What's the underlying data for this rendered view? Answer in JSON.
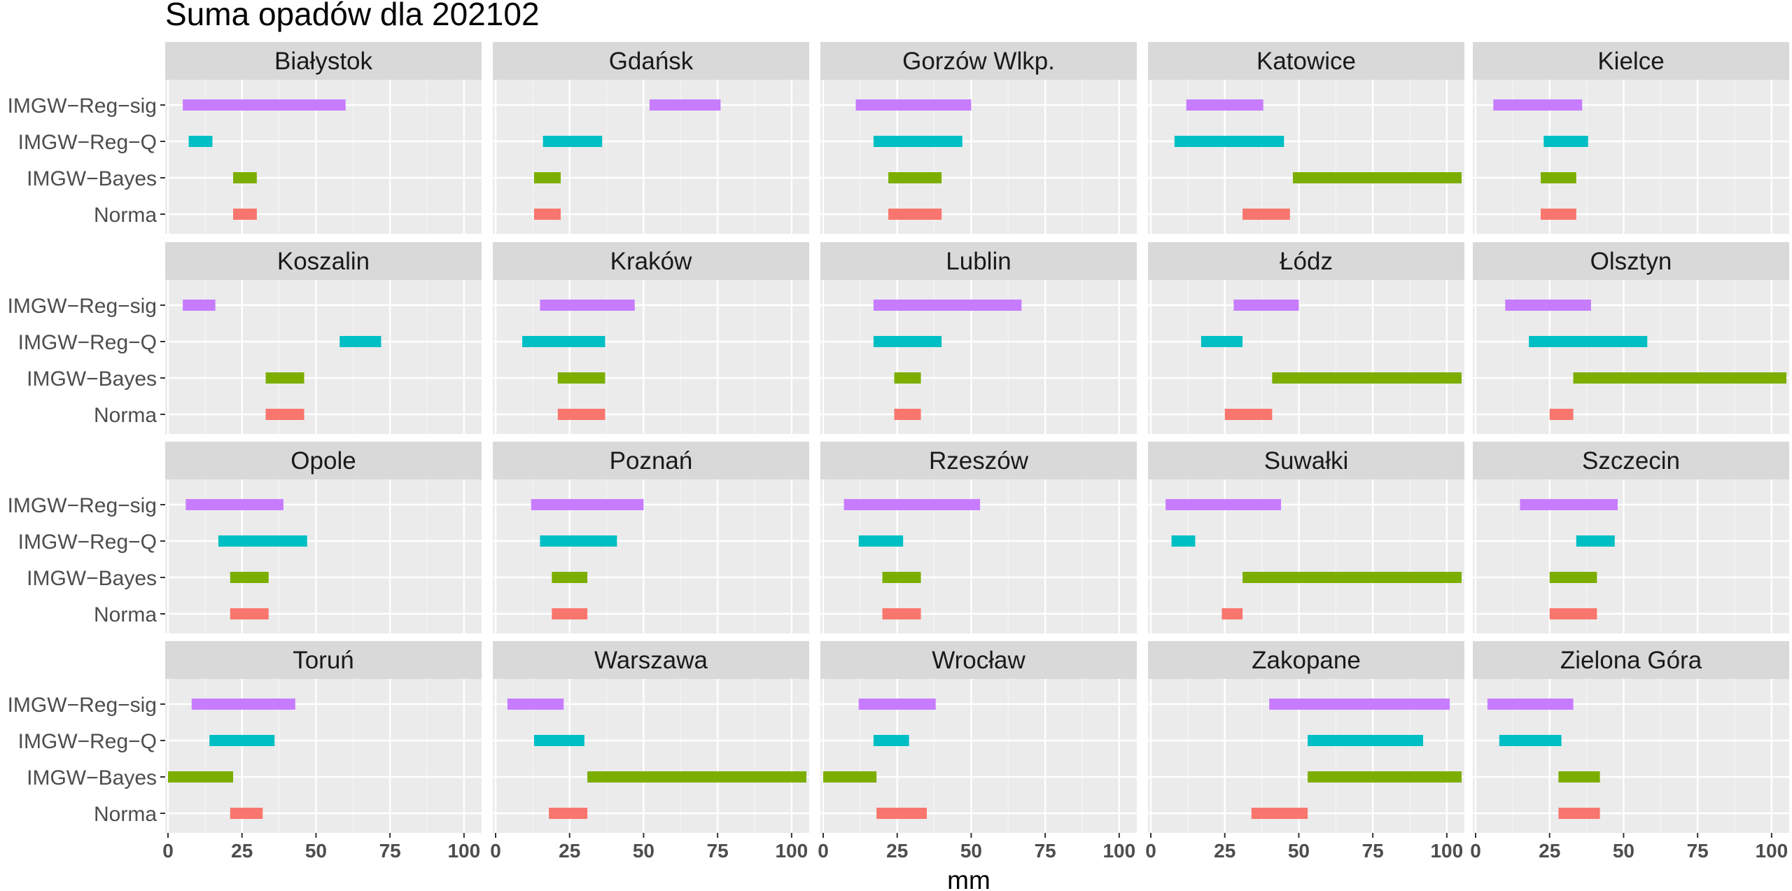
{
  "chart_data": {
    "type": "faceted-range-bar",
    "title": "Suma opadów dla 202102",
    "xlabel": "mm",
    "ylabel": "",
    "xlim": [
      0,
      105
    ],
    "x_ticks": [
      0,
      25,
      50,
      75,
      100
    ],
    "x_tick_labels": [
      "0",
      "25",
      "50",
      "75",
      "100"
    ],
    "categories": [
      "IMGW−Reg−sig",
      "IMGW−Reg−Q",
      "IMGW−Bayes",
      "Norma"
    ],
    "series_colors": {
      "IMGW−Reg−sig": "#C77CFF",
      "IMGW−Reg−Q": "#00BFC4",
      "IMGW−Bayes": "#7CAE00",
      "Norma": "#F8766D"
    },
    "panel_background": "#EBEBEB",
    "strip_background": "#D9D9D9",
    "grid": true,
    "legend": "none",
    "facets": [
      {
        "name": "Białystok",
        "ranges": {
          "IMGW−Reg−sig": [
            5,
            60
          ],
          "IMGW−Reg−Q": [
            7,
            15
          ],
          "IMGW−Bayes": [
            22,
            30
          ],
          "Norma": [
            22,
            30
          ]
        }
      },
      {
        "name": "Gdańsk",
        "ranges": {
          "IMGW−Reg−sig": [
            52,
            76
          ],
          "IMGW−Reg−Q": [
            16,
            36
          ],
          "IMGW−Bayes": [
            13,
            22
          ],
          "Norma": [
            13,
            22
          ]
        }
      },
      {
        "name": "Gorzów Wlkp.",
        "ranges": {
          "IMGW−Reg−sig": [
            11,
            50
          ],
          "IMGW−Reg−Q": [
            17,
            47
          ],
          "IMGW−Bayes": [
            22,
            40
          ],
          "Norma": [
            22,
            40
          ]
        }
      },
      {
        "name": "Katowice",
        "ranges": {
          "IMGW−Reg−sig": [
            12,
            38
          ],
          "IMGW−Reg−Q": [
            8,
            45
          ],
          "IMGW−Bayes": [
            48,
            105
          ],
          "Norma": [
            31,
            47
          ]
        }
      },
      {
        "name": "Kielce",
        "ranges": {
          "IMGW−Reg−sig": [
            6,
            36
          ],
          "IMGW−Reg−Q": [
            23,
            38
          ],
          "IMGW−Bayes": [
            22,
            34
          ],
          "Norma": [
            22,
            34
          ]
        }
      },
      {
        "name": "Koszalin",
        "ranges": {
          "IMGW−Reg−sig": [
            5,
            16
          ],
          "IMGW−Reg−Q": [
            58,
            72
          ],
          "IMGW−Bayes": [
            33,
            46
          ],
          "Norma": [
            33,
            46
          ]
        }
      },
      {
        "name": "Kraków",
        "ranges": {
          "IMGW−Reg−sig": [
            15,
            47
          ],
          "IMGW−Reg−Q": [
            9,
            37
          ],
          "IMGW−Bayes": [
            21,
            37
          ],
          "Norma": [
            21,
            37
          ]
        }
      },
      {
        "name": "Lublin",
        "ranges": {
          "IMGW−Reg−sig": [
            17,
            67
          ],
          "IMGW−Reg−Q": [
            17,
            40
          ],
          "IMGW−Bayes": [
            24,
            33
          ],
          "Norma": [
            24,
            33
          ]
        }
      },
      {
        "name": "Łódz",
        "ranges": {
          "IMGW−Reg−sig": [
            28,
            50
          ],
          "IMGW−Reg−Q": [
            17,
            31
          ],
          "IMGW−Bayes": [
            41,
            105
          ],
          "Norma": [
            25,
            41
          ]
        }
      },
      {
        "name": "Olsztyn",
        "ranges": {
          "IMGW−Reg−sig": [
            10,
            39
          ],
          "IMGW−Reg−Q": [
            18,
            58
          ],
          "IMGW−Bayes": [
            33,
            105
          ],
          "Norma": [
            25,
            33
          ]
        }
      },
      {
        "name": "Opole",
        "ranges": {
          "IMGW−Reg−sig": [
            6,
            39
          ],
          "IMGW−Reg−Q": [
            17,
            47
          ],
          "IMGW−Bayes": [
            21,
            34
          ],
          "Norma": [
            21,
            34
          ]
        }
      },
      {
        "name": "Poznań",
        "ranges": {
          "IMGW−Reg−sig": [
            12,
            50
          ],
          "IMGW−Reg−Q": [
            15,
            41
          ],
          "IMGW−Bayes": [
            19,
            31
          ],
          "Norma": [
            19,
            31
          ]
        }
      },
      {
        "name": "Rzeszów",
        "ranges": {
          "IMGW−Reg−sig": [
            7,
            53
          ],
          "IMGW−Reg−Q": [
            12,
            27
          ],
          "IMGW−Bayes": [
            20,
            33
          ],
          "Norma": [
            20,
            33
          ]
        }
      },
      {
        "name": "Suwałki",
        "ranges": {
          "IMGW−Reg−sig": [
            5,
            44
          ],
          "IMGW−Reg−Q": [
            7,
            15
          ],
          "IMGW−Bayes": [
            31,
            105
          ],
          "Norma": [
            24,
            31
          ]
        }
      },
      {
        "name": "Szczecin",
        "ranges": {
          "IMGW−Reg−sig": [
            15,
            48
          ],
          "IMGW−Reg−Q": [
            34,
            47
          ],
          "IMGW−Bayes": [
            25,
            41
          ],
          "Norma": [
            25,
            41
          ]
        }
      },
      {
        "name": "Toruń",
        "ranges": {
          "IMGW−Reg−sig": [
            8,
            43
          ],
          "IMGW−Reg−Q": [
            14,
            36
          ],
          "IMGW−Bayes": [
            0,
            22
          ],
          "Norma": [
            21,
            32
          ]
        }
      },
      {
        "name": "Warszawa",
        "ranges": {
          "IMGW−Reg−sig": [
            4,
            23
          ],
          "IMGW−Reg−Q": [
            13,
            30
          ],
          "IMGW−Bayes": [
            31,
            105
          ],
          "Norma": [
            18,
            31
          ]
        }
      },
      {
        "name": "Wrocław",
        "ranges": {
          "IMGW−Reg−sig": [
            12,
            38
          ],
          "IMGW−Reg−Q": [
            17,
            29
          ],
          "IMGW−Bayes": [
            0,
            18
          ],
          "Norma": [
            18,
            35
          ]
        }
      },
      {
        "name": "Zakopane",
        "ranges": {
          "IMGW−Reg−sig": [
            40,
            101
          ],
          "IMGW−Reg−Q": [
            53,
            92
          ],
          "IMGW−Bayes": [
            53,
            105
          ],
          "Norma": [
            34,
            53
          ]
        }
      },
      {
        "name": "Zielona Góra",
        "ranges": {
          "IMGW−Reg−sig": [
            4,
            33
          ],
          "IMGW−Reg−Q": [
            8,
            29
          ],
          "IMGW−Bayes": [
            28,
            42
          ],
          "Norma": [
            28,
            42
          ]
        }
      }
    ]
  }
}
